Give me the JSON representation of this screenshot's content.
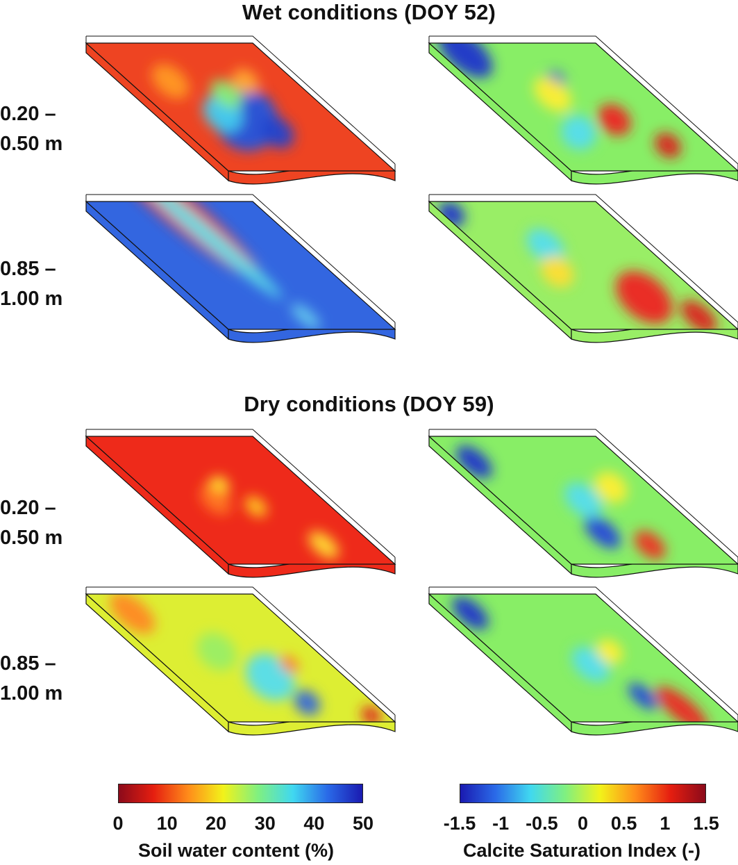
{
  "sections": [
    {
      "title": "Wet conditions (DOY 52)"
    },
    {
      "title": "Dry conditions (DOY 59)"
    }
  ],
  "depths": [
    {
      "line1": "0.20 –",
      "line2": "0.50 m"
    },
    {
      "line1": "0.85 –",
      "line2": "1.00 m"
    }
  ],
  "colorbars": {
    "water": {
      "label": "Soil water content (%)",
      "ticks": [
        "0",
        "10",
        "20",
        "30",
        "40",
        "50"
      ],
      "colors": [
        "#8b0a1a",
        "#e51e10",
        "#ff8c1a",
        "#f2f21a",
        "#80f080",
        "#40d8f0",
        "#2a6ae8",
        "#1a1ab0"
      ]
    },
    "calcite": {
      "label": "Calcite Saturation Index (-)",
      "ticks": [
        "-1.5",
        "-1",
        "-0.5",
        "0",
        "0.5",
        "1",
        "1.5"
      ],
      "colors": [
        "#1a1ab0",
        "#2a6ae8",
        "#40d8f0",
        "#80f080",
        "#f2f21a",
        "#ff8c1a",
        "#e51e10",
        "#8b0a1a"
      ]
    }
  },
  "panels": [
    {
      "id": "wet-shallow-water",
      "base": "#ee4422",
      "blobs": [
        {
          "u": 0.45,
          "v": 0.6,
          "ru": 0.18,
          "rv": 0.22,
          "c": "#2255dd"
        },
        {
          "u": 0.35,
          "v": 0.55,
          "ru": 0.12,
          "rv": 0.12,
          "c": "#44ccee"
        },
        {
          "u": 0.55,
          "v": 0.7,
          "ru": 0.1,
          "rv": 0.1,
          "c": "#2244cc"
        },
        {
          "u": 0.25,
          "v": 0.3,
          "ru": 0.12,
          "rv": 0.1,
          "c": "#ff9922"
        },
        {
          "u": 0.7,
          "v": 0.3,
          "ru": 0.08,
          "rv": 0.08,
          "c": "#ffaa33"
        },
        {
          "u": 0.5,
          "v": 0.4,
          "ru": 0.1,
          "rv": 0.08,
          "c": "#88ee77"
        }
      ]
    },
    {
      "id": "wet-shallow-calcite",
      "base": "#88ee66",
      "blobs": [
        {
          "u": 0.15,
          "v": 0.08,
          "ru": 0.18,
          "rv": 0.12,
          "c": "#1a33cc"
        },
        {
          "u": 0.5,
          "v": 0.3,
          "ru": 0.06,
          "rv": 0.07,
          "c": "#2244dd"
        },
        {
          "u": 0.6,
          "v": 0.6,
          "ru": 0.1,
          "rv": 0.1,
          "c": "#ee2222"
        },
        {
          "u": 0.75,
          "v": 0.8,
          "ru": 0.08,
          "rv": 0.08,
          "c": "#dd1a1a"
        },
        {
          "u": 0.4,
          "v": 0.4,
          "ru": 0.12,
          "rv": 0.1,
          "c": "#ffee33"
        },
        {
          "u": 0.3,
          "v": 0.7,
          "ru": 0.1,
          "rv": 0.12,
          "c": "#55ddee"
        }
      ]
    },
    {
      "id": "wet-deep-water",
      "base": "#3366e0",
      "blobs": [
        {
          "u": 0.5,
          "v": 0.05,
          "ru": 0.6,
          "rv": 0.12,
          "c": "#ee3322"
        },
        {
          "u": 0.5,
          "v": 0.18,
          "ru": 0.55,
          "rv": 0.06,
          "c": "#ffcc22"
        },
        {
          "u": 0.5,
          "v": 0.26,
          "ru": 0.55,
          "rv": 0.06,
          "c": "#55ddee"
        },
        {
          "u": 0.55,
          "v": 0.9,
          "ru": 0.1,
          "rv": 0.05,
          "c": "#66ccee"
        }
      ]
    },
    {
      "id": "wet-deep-calcite",
      "base": "#99ee66",
      "blobs": [
        {
          "u": 0.05,
          "v": 0.1,
          "ru": 0.08,
          "rv": 0.08,
          "c": "#1a33cc"
        },
        {
          "u": 0.65,
          "v": 0.75,
          "ru": 0.18,
          "rv": 0.15,
          "c": "#ee2222"
        },
        {
          "u": 0.85,
          "v": 0.9,
          "ru": 0.12,
          "rv": 0.08,
          "c": "#dd1a1a"
        },
        {
          "u": 0.4,
          "v": 0.35,
          "ru": 0.12,
          "rv": 0.1,
          "c": "#55ddee"
        },
        {
          "u": 0.3,
          "v": 0.55,
          "ru": 0.1,
          "rv": 0.1,
          "c": "#ffdd33"
        }
      ]
    },
    {
      "id": "dry-shallow-water",
      "base": "#ee2a1a",
      "blobs": [
        {
          "u": 0.45,
          "v": 0.4,
          "ru": 0.06,
          "rv": 0.08,
          "c": "#ffee33"
        },
        {
          "u": 0.55,
          "v": 0.55,
          "ru": 0.07,
          "rv": 0.06,
          "c": "#ffcc22"
        },
        {
          "u": 0.7,
          "v": 0.85,
          "ru": 0.1,
          "rv": 0.07,
          "c": "#ffdd33"
        },
        {
          "u": 0.35,
          "v": 0.5,
          "ru": 0.1,
          "rv": 0.08,
          "c": "#ff7722"
        }
      ]
    },
    {
      "id": "dry-shallow-calcite",
      "base": "#88ee66",
      "blobs": [
        {
          "u": 0.1,
          "v": 0.2,
          "ru": 0.12,
          "rv": 0.08,
          "c": "#1a33cc"
        },
        {
          "u": 0.4,
          "v": 0.75,
          "ru": 0.12,
          "rv": 0.08,
          "c": "#2244dd"
        },
        {
          "u": 0.6,
          "v": 0.85,
          "ru": 0.1,
          "rv": 0.08,
          "c": "#ee3322"
        },
        {
          "u": 0.5,
          "v": 0.5,
          "ru": 0.12,
          "rv": 0.1,
          "c": "#55ddee"
        },
        {
          "u": 0.75,
          "v": 0.4,
          "ru": 0.1,
          "rv": 0.1,
          "c": "#ffee33"
        }
      ]
    },
    {
      "id": "dry-deep-water",
      "base": "#ddee33",
      "blobs": [
        {
          "u": 0.15,
          "v": 0.15,
          "ru": 0.15,
          "rv": 0.1,
          "c": "#ff8822"
        },
        {
          "u": 0.55,
          "v": 0.65,
          "ru": 0.15,
          "rv": 0.15,
          "c": "#55ddee"
        },
        {
          "u": 0.6,
          "v": 0.85,
          "ru": 0.08,
          "rv": 0.08,
          "c": "#3366dd"
        },
        {
          "u": 0.75,
          "v": 0.55,
          "ru": 0.06,
          "rv": 0.05,
          "c": "#ff7722"
        },
        {
          "u": 0.9,
          "v": 0.95,
          "ru": 0.06,
          "rv": 0.06,
          "c": "#dd2222"
        },
        {
          "u": 0.4,
          "v": 0.45,
          "ru": 0.12,
          "rv": 0.12,
          "c": "#99ee66"
        }
      ]
    },
    {
      "id": "dry-deep-calcite",
      "base": "#88ee66",
      "blobs": [
        {
          "u": 0.12,
          "v": 0.15,
          "ru": 0.12,
          "rv": 0.08,
          "c": "#1a33cc"
        },
        {
          "u": 0.6,
          "v": 0.8,
          "ru": 0.1,
          "rv": 0.06,
          "c": "#2244dd"
        },
        {
          "u": 0.75,
          "v": 0.9,
          "ru": 0.18,
          "rv": 0.08,
          "c": "#ee2222"
        },
        {
          "u": 0.5,
          "v": 0.55,
          "ru": 0.12,
          "rv": 0.1,
          "c": "#55ddee"
        },
        {
          "u": 0.7,
          "v": 0.45,
          "ru": 0.08,
          "rv": 0.08,
          "c": "#ffee33"
        }
      ]
    }
  ]
}
